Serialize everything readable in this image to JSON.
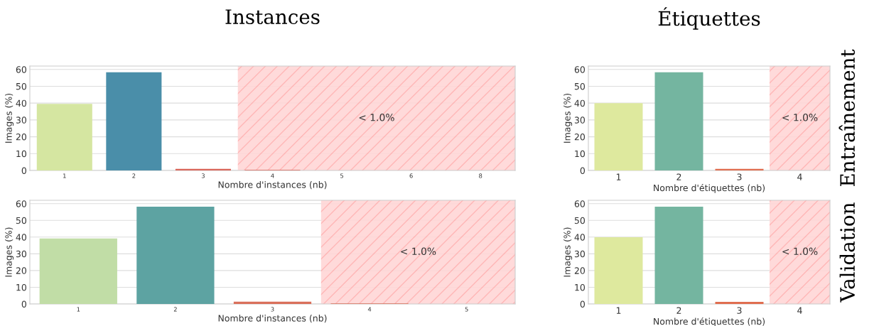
{
  "chart_data": [
    {
      "type": "bar",
      "title": "Instances",
      "xlabel": "Nombre d'instances (nb)",
      "ylabel": "Images (%)",
      "categories": [
        "1",
        "2",
        "3",
        "4",
        "5",
        "6",
        "8"
      ],
      "values": [
        39.5,
        58.3,
        1.0,
        0.3,
        0,
        0,
        0
      ],
      "colors": [
        "#d5e6a1",
        "#4a8ea9",
        "#d9665a",
        "#d9665a",
        "#d9665a",
        "#d9665a",
        "#d9665a"
      ],
      "ylim": [
        0,
        62
      ],
      "yticks": [
        0,
        10,
        20,
        30,
        40,
        50,
        60
      ],
      "grid": "y",
      "bands": [
        {
          "axis": "x",
          "from": "4",
          "to": "8",
          "label": "< 1.0%",
          "color": "#ffd6d6"
        }
      ]
    },
    {
      "type": "bar",
      "title": "Étiquettes",
      "y2label": "Entraînement",
      "xlabel": "Nombre d'étiquettes (nb)",
      "ylabel": "Images (%)",
      "categories": [
        "1",
        "2",
        "3",
        "4"
      ],
      "values": [
        40.0,
        58.3,
        0.9,
        0
      ],
      "colors": [
        "#dee99e",
        "#74b5a0",
        "#e06e50",
        "#e06e50"
      ],
      "ylim": [
        0,
        62
      ],
      "yticks": [
        0,
        10,
        20,
        30,
        40,
        50,
        60
      ],
      "grid": "y",
      "bands": [
        {
          "axis": "x",
          "from": "4",
          "to": "4",
          "label": "< 1.0%",
          "color": "#ffd6d6"
        }
      ]
    },
    {
      "type": "bar",
      "xlabel": "Nombre d'instances (nb)",
      "ylabel": "Images (%)",
      "categories": [
        "1",
        "2",
        "3",
        "4",
        "5"
      ],
      "values": [
        39.2,
        58.2,
        1.4,
        0.3,
        0
      ],
      "colors": [
        "#c1dda6",
        "#5da3a2",
        "#d9705b",
        "#d9705b",
        "#d9705b"
      ],
      "ylim": [
        0,
        62
      ],
      "yticks": [
        0,
        10,
        20,
        30,
        40,
        50,
        60
      ],
      "grid": "y",
      "bands": [
        {
          "axis": "x",
          "from": "4",
          "to": "5",
          "label": "< 1.0%",
          "color": "#ffd6d6"
        }
      ]
    },
    {
      "type": "bar",
      "y2label": "Validation",
      "xlabel": "Nombre d'étiquettes (nb)",
      "ylabel": "Images (%)",
      "categories": [
        "1",
        "2",
        "3",
        "4"
      ],
      "values": [
        39.9,
        58.2,
        1.3,
        0
      ],
      "colors": [
        "#dee99e",
        "#74b5a0",
        "#e06e50",
        "#e06e50"
      ],
      "ylim": [
        0,
        62
      ],
      "yticks": [
        0,
        10,
        20,
        30,
        40,
        50,
        60
      ],
      "grid": "y",
      "bands": [
        {
          "axis": "x",
          "from": "4",
          "to": "4",
          "label": "< 1.0%",
          "color": "#ffd6d6"
        }
      ]
    }
  ]
}
